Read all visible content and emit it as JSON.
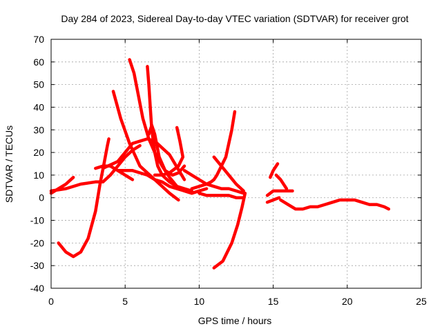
{
  "chart_data": {
    "type": "line",
    "title": "Day 284 of 2023, Sidereal Day-to-day VTEC variation (SDTVAR) for receiver grot",
    "xlabel": "GPS time / hours",
    "ylabel": "SDTVAR / TECUs",
    "xlim": [
      0,
      25
    ],
    "ylim": [
      -40,
      70
    ],
    "xticks": [
      0,
      5,
      10,
      15,
      20,
      25
    ],
    "yticks": [
      -40,
      -30,
      -20,
      -10,
      0,
      10,
      20,
      30,
      40,
      50,
      60,
      70
    ],
    "grid": true,
    "color": "#ff0000",
    "series": [
      {
        "x": [
          0.0,
          0.5,
          1.0,
          1.5
        ],
        "y": [
          2,
          4,
          6,
          9
        ]
      },
      {
        "x": [
          0.0,
          1.0,
          2.0,
          3.0,
          3.5,
          4.0,
          4.5,
          5.0,
          5.5,
          6.0
        ],
        "y": [
          3,
          4,
          6,
          7,
          7,
          10,
          14,
          18,
          21,
          23
        ]
      },
      {
        "x": [
          0.5,
          1.0,
          1.5,
          2.0,
          2.5,
          3.0,
          3.3,
          3.6,
          3.8,
          3.9
        ],
        "y": [
          -20,
          -24,
          -26,
          -24,
          -18,
          -6,
          6,
          16,
          23,
          26
        ]
      },
      {
        "x": [
          3.0,
          3.5,
          4.0,
          4.5,
          5.0,
          5.5
        ],
        "y": [
          13,
          14,
          14,
          12,
          10,
          8
        ]
      },
      {
        "x": [
          3.5,
          4.5,
          5.0,
          5.5,
          6.0,
          6.5,
          7.0,
          8.0,
          9.0
        ],
        "y": [
          13,
          16,
          20,
          24,
          25,
          26,
          25,
          19,
          8
        ]
      },
      {
        "x": [
          4.2,
          4.7,
          5.3,
          6.0,
          7.0,
          8.0,
          8.6
        ],
        "y": [
          47,
          35,
          24,
          14,
          8,
          2,
          -1
        ]
      },
      {
        "x": [
          4.5,
          5.0,
          5.5,
          6.0,
          6.5,
          7.0,
          7.5,
          8.0,
          8.5,
          9.0,
          9.5,
          10.0,
          10.5
        ],
        "y": [
          12,
          12,
          12,
          11,
          10,
          8,
          7,
          5,
          4,
          3,
          2,
          3,
          4
        ]
      },
      {
        "x": [
          5.3,
          5.6,
          5.9,
          6.2,
          6.6,
          7.0,
          7.5,
          8.0,
          8.5,
          9.0,
          9.5,
          10.0
        ],
        "y": [
          61,
          55,
          45,
          35,
          26,
          20,
          14,
          9,
          5,
          3,
          2,
          3
        ]
      },
      {
        "x": [
          6.5,
          6.6,
          6.7,
          6.8,
          7.0,
          7.2,
          7.5,
          8.0,
          8.5,
          9.0,
          9.5
        ],
        "y": [
          58,
          50,
          40,
          30,
          20,
          14,
          10,
          7,
          5,
          4,
          3
        ]
      },
      {
        "x": [
          6.6,
          6.8,
          7.0,
          7.3,
          7.7,
          8.2,
          8.6,
          9.0
        ],
        "y": [
          28,
          32,
          28,
          18,
          12,
          10,
          11,
          14
        ]
      },
      {
        "x": [
          8.5,
          8.7,
          8.9,
          8.6,
          8.0,
          7.5,
          7.0
        ],
        "y": [
          31,
          25,
          18,
          14,
          11,
          10,
          10
        ]
      },
      {
        "x": [
          9.0,
          9.5,
          10.0,
          10.5,
          11.0,
          11.5,
          12.0,
          12.5,
          13.0
        ],
        "y": [
          12,
          10,
          8,
          6,
          5,
          4,
          4,
          3,
          2
        ]
      },
      {
        "x": [
          12.4,
          12.2,
          12.0,
          11.8,
          11.5,
          11.2,
          11.0,
          10.8,
          10.5,
          10.0,
          9.5
        ],
        "y": [
          38,
          30,
          24,
          18,
          14,
          10,
          8,
          7,
          6,
          5,
          4
        ]
      },
      {
        "x": [
          11.0,
          11.5,
          12.0,
          12.5,
          13.0
        ],
        "y": [
          18,
          14,
          10,
          6,
          3
        ]
      },
      {
        "x": [
          11.0,
          11.6,
          12.2,
          12.6,
          12.9,
          13.1
        ],
        "y": [
          -31,
          -28,
          -20,
          -12,
          -4,
          2
        ]
      },
      {
        "x": [
          10.0,
          10.5,
          11.0,
          11.5,
          12.0,
          12.5,
          13.0
        ],
        "y": [
          2,
          1,
          1,
          1,
          1,
          0,
          0
        ]
      },
      {
        "x": [
          14.8,
          15.0,
          15.3
        ],
        "y": [
          9,
          12,
          15
        ]
      },
      {
        "x": [
          14.6,
          15.0,
          15.5,
          16.0,
          16.3
        ],
        "y": [
          1,
          3,
          3,
          3,
          3
        ]
      },
      {
        "x": [
          14.6,
          15.0,
          15.4
        ],
        "y": [
          -2,
          -1,
          0
        ]
      },
      {
        "x": [
          15.2,
          15.5,
          15.9
        ],
        "y": [
          10,
          8,
          4
        ]
      },
      {
        "x": [
          15.5,
          16.0,
          16.5,
          17.0,
          17.5,
          18.0,
          18.5,
          19.0,
          19.5,
          20.0,
          20.5,
          21.0,
          21.5,
          22.0,
          22.5,
          22.8
        ],
        "y": [
          -1,
          -3,
          -5,
          -5,
          -4,
          -4,
          -3,
          -2,
          -1,
          -1,
          -1,
          -2,
          -3,
          -3,
          -4,
          -5
        ]
      }
    ]
  }
}
